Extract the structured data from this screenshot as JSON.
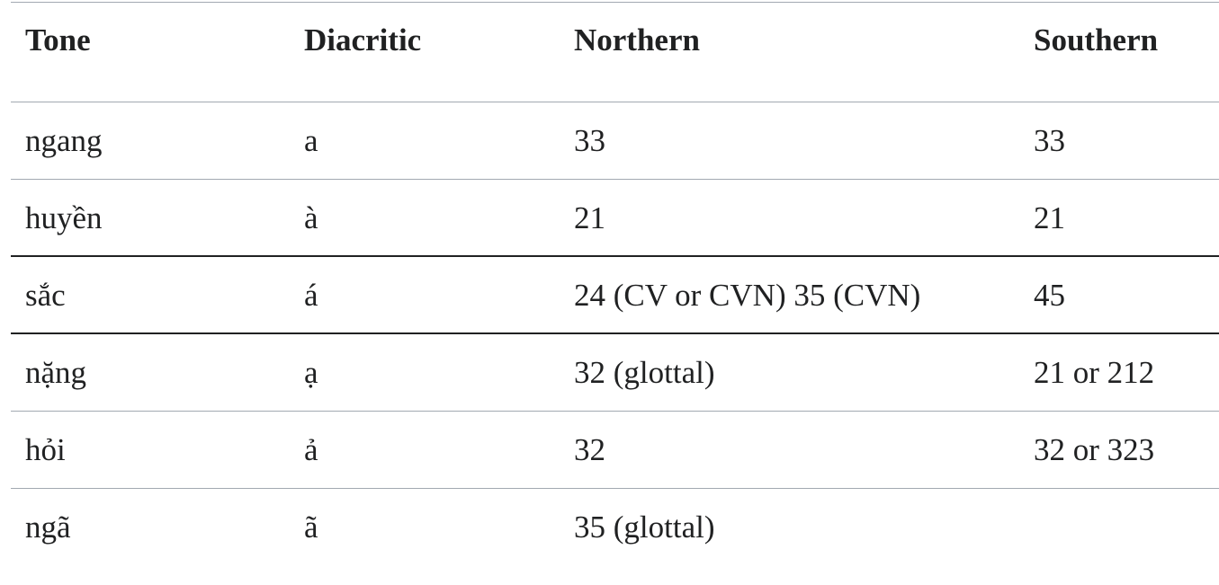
{
  "table": {
    "header": [
      "Tone",
      "Diacritic",
      "Northern",
      "Southern"
    ],
    "rows": [
      [
        "ngang",
        "a",
        "33",
        "33"
      ],
      [
        "huyền",
        "à",
        "21",
        "21"
      ],
      [
        "sắc",
        "á",
        "24 (CV or CVN) 35 (CVN)",
        "45"
      ],
      [
        "nặng",
        "ạ",
        "32 (glottal)",
        "21 or 212"
      ],
      [
        "hỏi",
        "ả",
        "32",
        "32 or 323"
      ],
      [
        "ngã",
        "ã",
        "35 (glottal)"
      ]
    ]
  }
}
